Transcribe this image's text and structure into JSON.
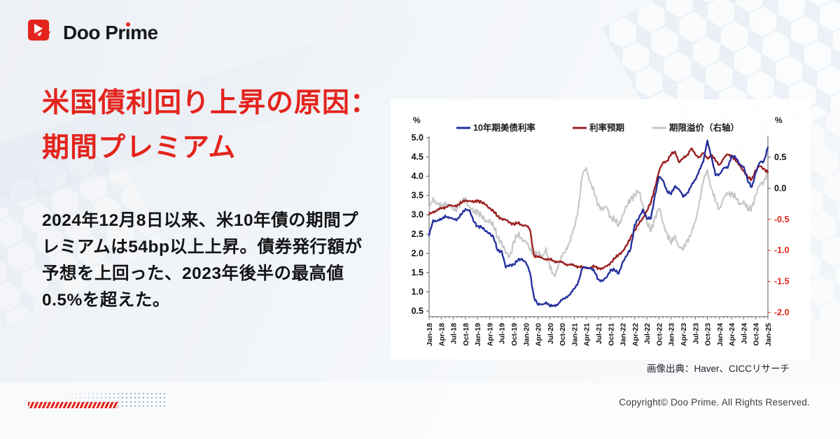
{
  "brand": {
    "name_left": "Doo Pr",
    "name_i": "ı",
    "name_right": "me"
  },
  "heading": {
    "line1": "米国債利回り上昇の原因：",
    "line2": "期間プレミアム"
  },
  "body": {
    "lines": [
      "2024年12月8日以来、米10年債の期間プ",
      "レミアムは54bp以上上昇。債券発行額が",
      "予想を上回った、2023年後半の最高値",
      "0.5%を超えた。"
    ]
  },
  "chart_caption": "画像出典：Haver、CICCリサーチ",
  "footer": {
    "copyright": "Copyright© Doo Prime. All Rights Reserved."
  },
  "colors": {
    "accent_red": "#e3241d",
    "text_dark": "#121315",
    "line_blue": "#26319e",
    "line_dark_red": "#9b2121",
    "line_gray": "#c6c6c6",
    "axis_negative_red": "#e8251e"
  },
  "chart_data": {
    "type": "line",
    "title": "",
    "legend_position": "top",
    "grid": false,
    "months": 85,
    "x_tick_labels": [
      "Jan-18",
      "Apr-18",
      "Jul-18",
      "Oct-18",
      "Jan-19",
      "Apr-19",
      "Jul-19",
      "Oct-19",
      "Jan-20",
      "Apr-20",
      "Jul-20",
      "Oct-20",
      "Jan-21",
      "Apr-21",
      "Jul-21",
      "Oct-21",
      "Jan-22",
      "Apr-22",
      "Jul-22",
      "Oct-22",
      "Jan-23",
      "Apr-23",
      "Jul-23",
      "Oct-23",
      "Jan-24",
      "Apr-24",
      "Jul-24",
      "Oct-24",
      "Jan-25"
    ],
    "left_axis": {
      "label": "%",
      "min": 0.5,
      "max": 5.0,
      "ticks": [
        5.0,
        4.5,
        4.0,
        3.5,
        3.0,
        2.5,
        2.0,
        1.5,
        1.0,
        0.5
      ]
    },
    "right_axis": {
      "label": "%",
      "min": -2.0,
      "max": 0.5,
      "ticks": [
        0.5,
        0.0,
        -0.5,
        -1.0,
        -1.5,
        -2.0
      ],
      "negative_color": "#e8251e"
    },
    "series": [
      {
        "id": "series-10y-treasury-yield",
        "name": "10年期美债利率",
        "axis": "left",
        "color": "#26319e",
        "values": [
          2.46,
          2.86,
          2.84,
          2.87,
          2.98,
          2.91,
          2.89,
          2.89,
          3.0,
          3.15,
          3.12,
          2.83,
          2.71,
          2.68,
          2.57,
          2.53,
          2.4,
          2.07,
          2.06,
          1.63,
          1.7,
          1.71,
          1.81,
          1.86,
          1.76,
          1.5,
          0.87,
          0.66,
          0.67,
          0.73,
          0.62,
          0.65,
          0.68,
          0.79,
          0.87,
          0.93,
          1.08,
          1.26,
          1.61,
          1.64,
          1.62,
          1.52,
          1.32,
          1.28,
          1.37,
          1.58,
          1.56,
          1.47,
          1.78,
          1.93,
          2.13,
          2.75,
          2.9,
          3.14,
          2.9,
          2.9,
          3.52,
          3.98,
          3.89,
          3.62,
          3.53,
          3.75,
          3.66,
          3.46,
          3.57,
          3.75,
          3.9,
          4.17,
          4.38,
          4.93,
          4.5,
          4.02,
          4.06,
          4.21,
          4.21,
          4.54,
          4.48,
          4.31,
          4.25,
          3.87,
          3.72,
          4.1,
          4.36,
          4.39,
          4.75
        ]
      },
      {
        "id": "series-rate-expectations",
        "name": "利率预期",
        "axis": "left",
        "color": "#9b2121",
        "values": [
          3.0,
          3.08,
          3.12,
          3.16,
          3.2,
          3.24,
          3.22,
          3.26,
          3.3,
          3.38,
          3.36,
          3.32,
          3.38,
          3.32,
          3.26,
          3.18,
          3.08,
          2.96,
          2.9,
          2.86,
          2.8,
          2.76,
          2.78,
          2.74,
          2.72,
          2.62,
          1.95,
          1.9,
          1.88,
          1.85,
          1.83,
          1.8,
          1.78,
          1.76,
          1.72,
          1.7,
          1.68,
          1.66,
          1.63,
          1.62,
          1.63,
          1.65,
          1.62,
          1.6,
          1.66,
          1.76,
          1.86,
          1.96,
          2.06,
          2.2,
          2.42,
          2.6,
          2.76,
          2.92,
          3.1,
          3.32,
          3.72,
          4.12,
          4.36,
          4.4,
          4.56,
          4.64,
          4.36,
          4.46,
          4.56,
          4.72,
          4.56,
          4.5,
          4.6,
          4.46,
          4.56,
          4.4,
          4.3,
          4.46,
          4.56,
          4.54,
          4.4,
          4.28,
          4.14,
          3.96,
          3.92,
          4.16,
          4.26,
          4.2,
          4.1
        ]
      },
      {
        "id": "series-term-premium",
        "name": "期限溢价（右轴）",
        "axis": "right",
        "color": "#c6c6c6",
        "values": [
          -0.35,
          -0.15,
          -0.25,
          -0.3,
          -0.22,
          -0.3,
          -0.35,
          -0.3,
          -0.25,
          -0.15,
          -0.3,
          -0.4,
          -0.35,
          -0.45,
          -0.55,
          -0.5,
          -0.62,
          -0.8,
          -0.86,
          -1.05,
          -1.1,
          -0.85,
          -0.76,
          -0.8,
          -0.86,
          -1.0,
          -1.02,
          -1.06,
          -1.1,
          -0.96,
          -1.3,
          -1.4,
          -1.25,
          -1.1,
          -0.96,
          -0.85,
          -0.64,
          -0.3,
          0.2,
          0.33,
          0.1,
          -0.1,
          -0.25,
          -0.35,
          -0.3,
          -0.45,
          -0.52,
          -0.6,
          -0.42,
          -0.3,
          -0.16,
          -0.1,
          -0.06,
          -0.26,
          -0.56,
          -0.7,
          -0.45,
          -0.32,
          -0.56,
          -0.72,
          -0.9,
          -0.76,
          -0.95,
          -1.0,
          -0.82,
          -0.74,
          -0.55,
          -0.2,
          0.1,
          0.3,
          0.0,
          -0.22,
          -0.32,
          -0.16,
          -0.1,
          -0.06,
          -0.16,
          -0.26,
          -0.2,
          -0.36,
          -0.3,
          -0.1,
          0.05,
          0.12,
          0.28
        ]
      }
    ]
  }
}
